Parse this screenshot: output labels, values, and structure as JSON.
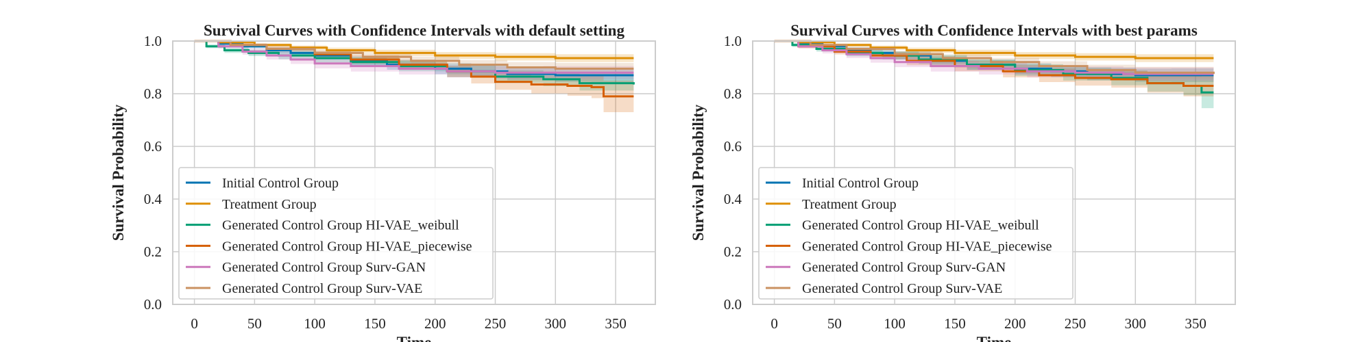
{
  "figure": {
    "colors": {
      "grid": "#cccccc",
      "frame": "#cccccc",
      "background": "#ffffff"
    }
  },
  "chart_data": [
    {
      "type": "line",
      "subtype": "survival-step-with-confidence-bands",
      "title": "Survival Curves with Confidence Intervals with default setting",
      "xlabel": "Time",
      "ylabel": "Survival Probability",
      "xlim": [
        -18,
        383
      ],
      "ylim": [
        0.0,
        1.0
      ],
      "xticks": [
        0,
        50,
        100,
        150,
        200,
        250,
        300,
        350
      ],
      "yticks": [
        0.0,
        0.2,
        0.4,
        0.6,
        0.8,
        1.0
      ],
      "ytick_labels": [
        "0.0",
        "0.2",
        "0.4",
        "0.6",
        "0.8",
        "1.0"
      ],
      "grid": true,
      "legend_position": "lower-left",
      "series": [
        {
          "name": "Initial Control Group",
          "color": "#0173b2",
          "x": [
            0,
            20,
            40,
            60,
            80,
            100,
            130,
            160,
            200,
            230,
            260,
            300,
            330,
            365
          ],
          "y": [
            1.0,
            0.99,
            0.98,
            0.965,
            0.955,
            0.945,
            0.925,
            0.91,
            0.895,
            0.885,
            0.875,
            0.87,
            0.87,
            0.87
          ],
          "ci_halfwidth": [
            0.0,
            0.005,
            0.008,
            0.011,
            0.013,
            0.015,
            0.017,
            0.019,
            0.021,
            0.022,
            0.024,
            0.025,
            0.026,
            0.027
          ]
        },
        {
          "name": "Treatment Group",
          "color": "#de8f05",
          "x": [
            0,
            20,
            50,
            80,
            110,
            150,
            200,
            250,
            300,
            365
          ],
          "y": [
            1.0,
            0.995,
            0.985,
            0.975,
            0.965,
            0.955,
            0.945,
            0.94,
            0.935,
            0.935
          ],
          "ci_halfwidth": [
            0.0,
            0.003,
            0.006,
            0.008,
            0.01,
            0.012,
            0.013,
            0.014,
            0.015,
            0.015
          ]
        },
        {
          "name": "Generated Control Group HI-VAE_weibull",
          "color": "#029e73",
          "x": [
            0,
            10,
            25,
            45,
            70,
            100,
            130,
            170,
            210,
            250,
            290,
            320,
            365
          ],
          "y": [
            1.0,
            0.98,
            0.965,
            0.955,
            0.945,
            0.935,
            0.92,
            0.905,
            0.885,
            0.865,
            0.855,
            0.84,
            0.835
          ],
          "ci_halfwidth": [
            0.0,
            0.007,
            0.01,
            0.012,
            0.014,
            0.016,
            0.018,
            0.02,
            0.022,
            0.024,
            0.026,
            0.028,
            0.03
          ]
        },
        {
          "name": "Generated Control Group HI-VAE_piecewise",
          "color": "#d55e00",
          "x": [
            0,
            30,
            60,
            100,
            130,
            170,
            210,
            230,
            250,
            280,
            310,
            330,
            340,
            365
          ],
          "y": [
            1.0,
            0.985,
            0.97,
            0.95,
            0.93,
            0.91,
            0.885,
            0.865,
            0.845,
            0.835,
            0.83,
            0.825,
            0.79,
            0.79
          ],
          "ci_halfwidth": [
            0.0,
            0.006,
            0.01,
            0.013,
            0.016,
            0.019,
            0.022,
            0.026,
            0.03,
            0.034,
            0.038,
            0.042,
            0.06,
            0.06
          ]
        },
        {
          "name": "Generated Control Group Surv-GAN",
          "color": "#cc78bc",
          "x": [
            0,
            20,
            40,
            60,
            80,
            100,
            130,
            170,
            210,
            250,
            290,
            365
          ],
          "y": [
            1.0,
            0.98,
            0.96,
            0.945,
            0.93,
            0.915,
            0.905,
            0.895,
            0.885,
            0.88,
            0.88,
            0.88
          ],
          "ci_halfwidth": [
            0.0,
            0.008,
            0.012,
            0.015,
            0.017,
            0.019,
            0.021,
            0.022,
            0.023,
            0.024,
            0.025,
            0.026
          ]
        },
        {
          "name": "Generated Control Group Surv-VAE",
          "color": "#ca9161",
          "x": [
            0,
            30,
            60,
            100,
            140,
            180,
            220,
            260,
            300,
            365
          ],
          "y": [
            1.0,
            0.985,
            0.97,
            0.955,
            0.94,
            0.925,
            0.91,
            0.9,
            0.895,
            0.895
          ],
          "ci_halfwidth": [
            0.0,
            0.005,
            0.009,
            0.012,
            0.014,
            0.016,
            0.018,
            0.02,
            0.022,
            0.024
          ]
        }
      ]
    },
    {
      "type": "line",
      "subtype": "survival-step-with-confidence-bands",
      "title": "Survival Curves with Confidence Intervals with best params",
      "xlabel": "Time",
      "ylabel": "Survival Probability",
      "xlim": [
        -18,
        383
      ],
      "ylim": [
        0.0,
        1.0
      ],
      "xticks": [
        0,
        50,
        100,
        150,
        200,
        250,
        300,
        350
      ],
      "yticks": [
        0.0,
        0.2,
        0.4,
        0.6,
        0.8,
        1.0
      ],
      "ytick_labels": [
        "0.0",
        "0.2",
        "0.4",
        "0.6",
        "0.8",
        "1.0"
      ],
      "grid": true,
      "legend_position": "lower-left",
      "series": [
        {
          "name": "Initial Control Group",
          "color": "#0173b2",
          "x": [
            0,
            20,
            40,
            60,
            80,
            100,
            130,
            160,
            200,
            230,
            260,
            300,
            330,
            365
          ],
          "y": [
            1.0,
            0.99,
            0.98,
            0.965,
            0.955,
            0.945,
            0.925,
            0.91,
            0.895,
            0.885,
            0.875,
            0.87,
            0.87,
            0.87
          ],
          "ci_halfwidth": [
            0.0,
            0.005,
            0.008,
            0.011,
            0.013,
            0.015,
            0.017,
            0.019,
            0.021,
            0.022,
            0.024,
            0.025,
            0.026,
            0.027
          ]
        },
        {
          "name": "Treatment Group",
          "color": "#de8f05",
          "x": [
            0,
            20,
            50,
            80,
            110,
            150,
            200,
            250,
            300,
            365
          ],
          "y": [
            1.0,
            0.995,
            0.985,
            0.975,
            0.965,
            0.955,
            0.945,
            0.94,
            0.935,
            0.935
          ],
          "ci_halfwidth": [
            0.0,
            0.003,
            0.006,
            0.008,
            0.01,
            0.012,
            0.013,
            0.014,
            0.015,
            0.015
          ]
        },
        {
          "name": "Generated Control Group HI-VAE_weibull",
          "color": "#029e73",
          "x": [
            0,
            15,
            35,
            60,
            90,
            120,
            160,
            200,
            240,
            280,
            310,
            340,
            355,
            365
          ],
          "y": [
            1.0,
            0.985,
            0.97,
            0.955,
            0.945,
            0.93,
            0.91,
            0.89,
            0.875,
            0.86,
            0.84,
            0.83,
            0.805,
            0.805
          ],
          "ci_halfwidth": [
            0.0,
            0.007,
            0.01,
            0.013,
            0.015,
            0.017,
            0.02,
            0.022,
            0.025,
            0.028,
            0.032,
            0.036,
            0.06,
            0.06
          ]
        },
        {
          "name": "Generated Control Group HI-VAE_piecewise",
          "color": "#d55e00",
          "x": [
            0,
            20,
            50,
            80,
            110,
            150,
            190,
            220,
            250,
            280,
            310,
            340,
            365
          ],
          "y": [
            1.0,
            0.98,
            0.96,
            0.945,
            0.925,
            0.905,
            0.885,
            0.87,
            0.86,
            0.855,
            0.84,
            0.83,
            0.83
          ],
          "ci_halfwidth": [
            0.0,
            0.007,
            0.011,
            0.014,
            0.017,
            0.02,
            0.023,
            0.026,
            0.029,
            0.032,
            0.036,
            0.04,
            0.04
          ]
        },
        {
          "name": "Generated Control Group Surv-GAN",
          "color": "#cc78bc",
          "x": [
            0,
            20,
            40,
            60,
            80,
            100,
            130,
            170,
            210,
            250,
            290,
            365
          ],
          "y": [
            1.0,
            0.98,
            0.965,
            0.95,
            0.935,
            0.92,
            0.905,
            0.895,
            0.885,
            0.88,
            0.875,
            0.875
          ],
          "ci_halfwidth": [
            0.0,
            0.008,
            0.012,
            0.015,
            0.017,
            0.019,
            0.021,
            0.022,
            0.023,
            0.024,
            0.025,
            0.026
          ]
        },
        {
          "name": "Generated Control Group Surv-VAE",
          "color": "#ca9161",
          "x": [
            0,
            30,
            60,
            100,
            140,
            180,
            220,
            260,
            300,
            365
          ],
          "y": [
            1.0,
            0.985,
            0.97,
            0.95,
            0.935,
            0.92,
            0.905,
            0.89,
            0.88,
            0.875
          ],
          "ci_halfwidth": [
            0.0,
            0.005,
            0.009,
            0.012,
            0.014,
            0.016,
            0.018,
            0.02,
            0.022,
            0.024
          ]
        }
      ]
    }
  ]
}
